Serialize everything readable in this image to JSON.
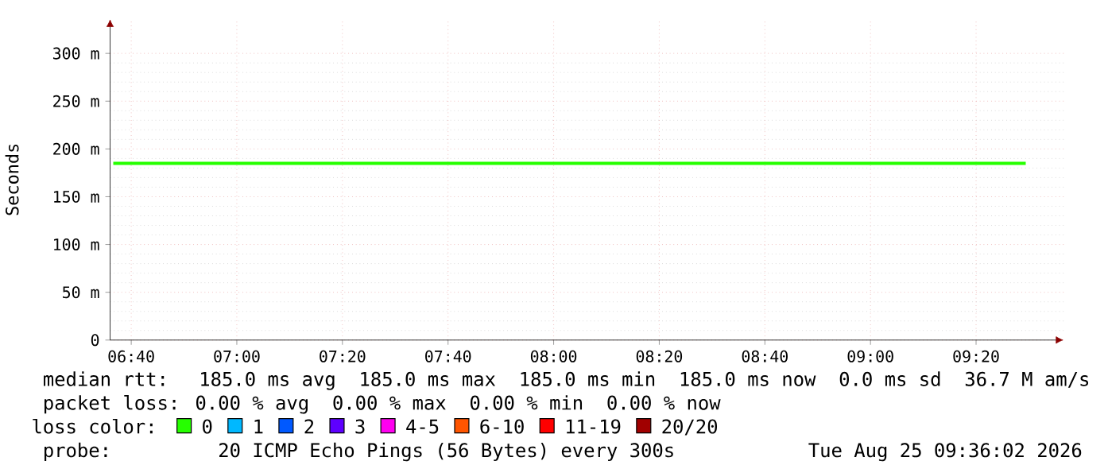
{
  "chart_data": {
    "type": "line",
    "ylabel": "Seconds",
    "xlim": [
      6.6,
      9.61
    ],
    "ylim": [
      0,
      336
    ],
    "xticks": [
      {
        "value": 6.6667,
        "label": "06:40"
      },
      {
        "value": 7,
        "label": "07:00"
      },
      {
        "value": 7.3333,
        "label": "07:20"
      },
      {
        "value": 7.6667,
        "label": "07:40"
      },
      {
        "value": 8,
        "label": "08:00"
      },
      {
        "value": 8.3333,
        "label": "08:20"
      },
      {
        "value": 8.6667,
        "label": "08:40"
      },
      {
        "value": 9,
        "label": "09:00"
      },
      {
        "value": 9.3333,
        "label": "09:20"
      }
    ],
    "yticks": [
      0,
      {
        "value": 50,
        "label": "50 m"
      },
      {
        "value": 100,
        "label": "100 m"
      },
      {
        "value": 150,
        "label": "150 m"
      },
      {
        "value": 200,
        "label": "200 m"
      },
      {
        "value": 250,
        "label": "250 m"
      },
      {
        "value": 300,
        "label": "300 m"
      }
    ],
    "grid": true,
    "legend": "bottom",
    "legend_title": "loss color:",
    "series": [
      {
        "name": "0",
        "color": "#26ff00",
        "x": [
          6.61,
          9.49
        ],
        "values": [
          185,
          185
        ]
      },
      {
        "name": "1",
        "color": "#00b8ff"
      },
      {
        "name": "2",
        "color": "#0059ff"
      },
      {
        "name": "3",
        "color": "#5e00ff"
      },
      {
        "name": "4-5",
        "color": "#ff00f0"
      },
      {
        "name": "6-10",
        "color": "#ff5500"
      },
      {
        "name": "11-19",
        "color": "#ff0000"
      },
      {
        "name": "20/20",
        "color": "#a10000"
      }
    ],
    "line_style": "solid",
    "annotations": [
      "median rtt:  185.0 ms avg  185.0 ms max  185.0 ms min  185.0 ms now  0.0 ms sd  36.7 M am/s",
      "packet loss: 0.00 % avg  0.00 % max  0.00 % min  0.00 % now",
      "probe:       20 ICMP Echo Pings (56 Bytes) every 300s",
      "Tue Aug 25 09:36:02 2026"
    ]
  }
}
